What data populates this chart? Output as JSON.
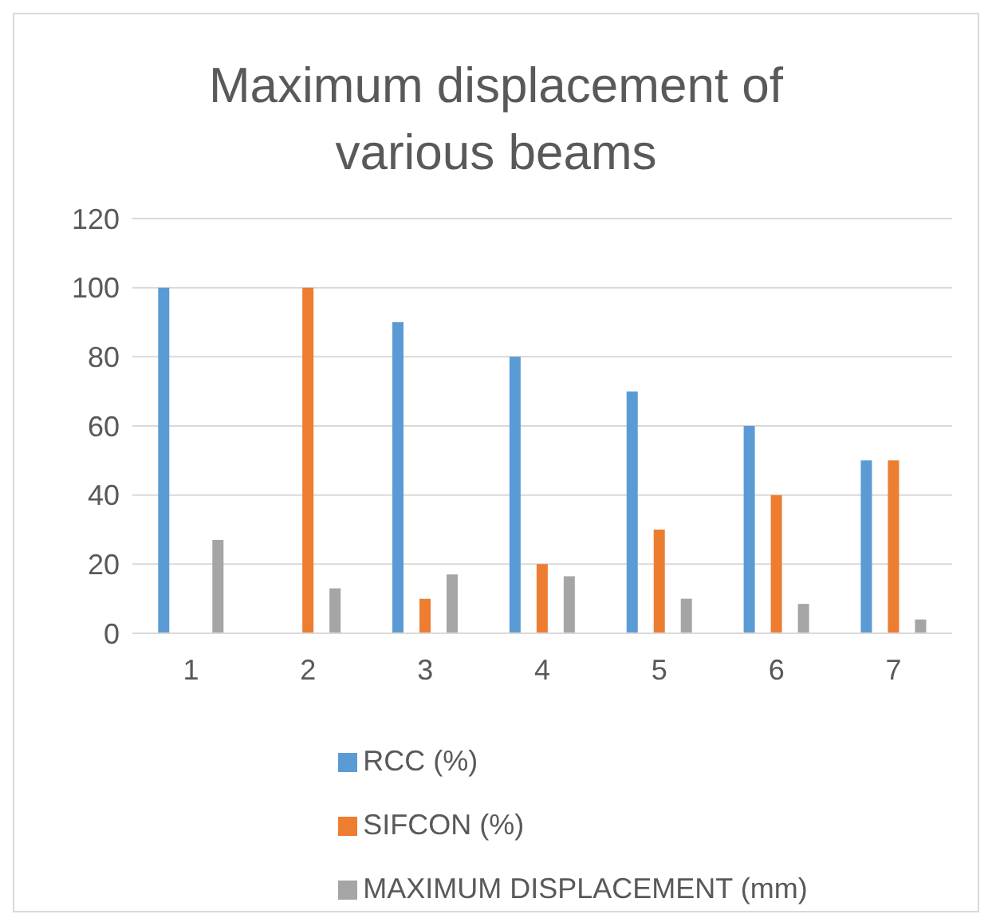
{
  "chart_data": {
    "type": "bar",
    "title": "Maximum displacement of various beams",
    "categories": [
      "1",
      "2",
      "3",
      "4",
      "5",
      "6",
      "7"
    ],
    "series": [
      {
        "name": "RCC (%)",
        "color": "#5b9bd5",
        "values": [
          100,
          0,
          90,
          80,
          70,
          60,
          50
        ]
      },
      {
        "name": "SIFCON (%)",
        "color": "#ed7d31",
        "values": [
          0,
          100,
          10,
          20,
          30,
          40,
          50
        ]
      },
      {
        "name": "MAXIMUM DISPLACEMENT (mm)",
        "color": "#a5a5a5",
        "values": [
          27,
          13,
          17,
          16.5,
          10,
          8.5,
          4
        ]
      }
    ],
    "ylim": [
      0,
      120
    ],
    "yticks": [
      0,
      20,
      40,
      60,
      80,
      100,
      120
    ],
    "grid": "y",
    "legend": "bottom"
  }
}
